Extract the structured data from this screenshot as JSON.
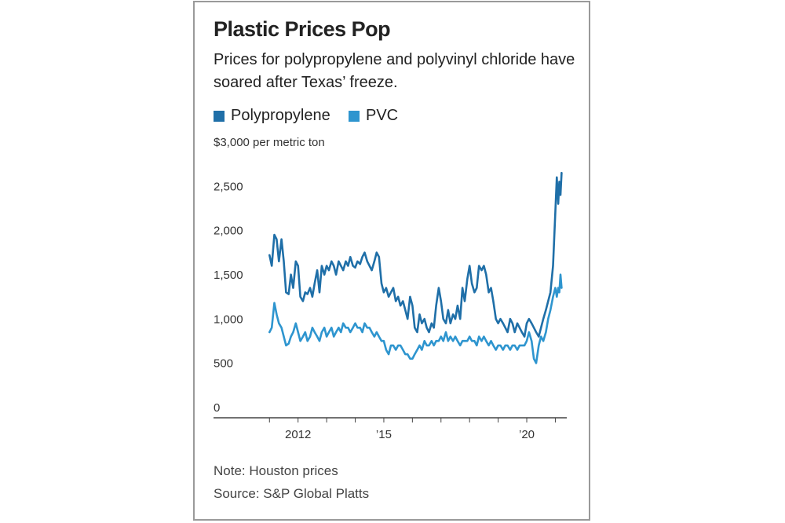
{
  "chart_data": {
    "type": "line",
    "title": "Plastic Prices Pop",
    "subtitle": "Prices for polypropylene and polyvinyl chloride have soared after Texas’ freeze.",
    "ylabel": "$3,000 per metric ton",
    "ylim": [
      0,
      3000
    ],
    "xlim": [
      2010.8,
      2021.4
    ],
    "grid": false,
    "legend_placement": "top-left",
    "y_ticks": [
      {
        "value": 3000,
        "label": "$3,000"
      },
      {
        "value": 2500,
        "label": "2,500"
      },
      {
        "value": 2000,
        "label": "2,000"
      },
      {
        "value": 1500,
        "label": "1,500"
      },
      {
        "value": 1000,
        "label": "1,000"
      },
      {
        "value": 500,
        "label": "500"
      },
      {
        "value": 0,
        "label": "0"
      }
    ],
    "x_ticks": [
      {
        "value": 2012,
        "label": "2012"
      },
      {
        "value": 2015,
        "label": "’15"
      },
      {
        "value": 2020,
        "label": "’20"
      }
    ],
    "series": [
      {
        "name": "Polypropylene",
        "color": "#1f6fa8",
        "x": [
          2011.0,
          2011.08,
          2011.17,
          2011.25,
          2011.33,
          2011.42,
          2011.5,
          2011.58,
          2011.67,
          2011.75,
          2011.83,
          2011.92,
          2012.0,
          2012.08,
          2012.17,
          2012.25,
          2012.33,
          2012.42,
          2012.5,
          2012.58,
          2012.67,
          2012.75,
          2012.83,
          2012.92,
          2013.0,
          2013.08,
          2013.17,
          2013.25,
          2013.33,
          2013.42,
          2013.5,
          2013.58,
          2013.67,
          2013.75,
          2013.83,
          2013.92,
          2014.0,
          2014.08,
          2014.17,
          2014.25,
          2014.33,
          2014.42,
          2014.5,
          2014.58,
          2014.67,
          2014.75,
          2014.83,
          2014.92,
          2015.0,
          2015.08,
          2015.17,
          2015.25,
          2015.33,
          2015.42,
          2015.5,
          2015.58,
          2015.67,
          2015.75,
          2015.83,
          2015.92,
          2016.0,
          2016.08,
          2016.17,
          2016.25,
          2016.33,
          2016.42,
          2016.5,
          2016.58,
          2016.67,
          2016.75,
          2016.83,
          2016.92,
          2017.0,
          2017.08,
          2017.17,
          2017.25,
          2017.33,
          2017.42,
          2017.5,
          2017.58,
          2017.67,
          2017.75,
          2017.83,
          2017.92,
          2018.0,
          2018.08,
          2018.17,
          2018.25,
          2018.33,
          2018.42,
          2018.5,
          2018.58,
          2018.67,
          2018.75,
          2018.83,
          2018.92,
          2019.0,
          2019.08,
          2019.17,
          2019.25,
          2019.33,
          2019.42,
          2019.5,
          2019.58,
          2019.67,
          2019.75,
          2019.83,
          2019.92,
          2020.0,
          2020.08,
          2020.17,
          2020.25,
          2020.33,
          2020.42,
          2020.5,
          2020.58,
          2020.67,
          2020.75,
          2020.83,
          2020.92,
          2021.0,
          2021.05,
          2021.1,
          2021.14,
          2021.18,
          2021.22
        ],
        "values": [
          1820,
          1700,
          2050,
          2000,
          1750,
          2000,
          1750,
          1400,
          1380,
          1600,
          1450,
          1750,
          1700,
          1350,
          1300,
          1400,
          1380,
          1450,
          1350,
          1500,
          1650,
          1400,
          1700,
          1600,
          1700,
          1650,
          1750,
          1700,
          1600,
          1750,
          1700,
          1650,
          1750,
          1700,
          1800,
          1700,
          1680,
          1750,
          1720,
          1800,
          1850,
          1750,
          1700,
          1650,
          1750,
          1850,
          1800,
          1500,
          1400,
          1450,
          1350,
          1400,
          1450,
          1300,
          1350,
          1250,
          1300,
          1200,
          1100,
          1350,
          1250,
          1000,
          950,
          1150,
          1050,
          1100,
          1000,
          950,
          1050,
          1000,
          1250,
          1450,
          1300,
          1100,
          1050,
          1200,
          1050,
          1150,
          1100,
          1250,
          1100,
          1450,
          1300,
          1550,
          1700,
          1500,
          1400,
          1450,
          1700,
          1650,
          1700,
          1600,
          1400,
          1450,
          1300,
          1100,
          1050,
          1100,
          1050,
          1000,
          950,
          1100,
          1050,
          950,
          1050,
          1000,
          950,
          900,
          1050,
          1100,
          1050,
          1000,
          950,
          900,
          1000,
          1100,
          1200,
          1300,
          1400,
          1700,
          2300,
          2700,
          2400,
          2650,
          2500,
          2750
        ]
      },
      {
        "name": "PVC",
        "color": "#2e95cf",
        "x": [
          2011.0,
          2011.08,
          2011.17,
          2011.25,
          2011.33,
          2011.42,
          2011.5,
          2011.58,
          2011.67,
          2011.75,
          2011.83,
          2011.92,
          2012.0,
          2012.08,
          2012.17,
          2012.25,
          2012.33,
          2012.42,
          2012.5,
          2012.58,
          2012.67,
          2012.75,
          2012.83,
          2012.92,
          2013.0,
          2013.08,
          2013.17,
          2013.25,
          2013.33,
          2013.42,
          2013.5,
          2013.58,
          2013.67,
          2013.75,
          2013.83,
          2013.92,
          2014.0,
          2014.08,
          2014.17,
          2014.25,
          2014.33,
          2014.42,
          2014.5,
          2014.58,
          2014.67,
          2014.75,
          2014.83,
          2014.92,
          2015.0,
          2015.08,
          2015.17,
          2015.25,
          2015.33,
          2015.42,
          2015.5,
          2015.58,
          2015.67,
          2015.75,
          2015.83,
          2015.92,
          2016.0,
          2016.08,
          2016.17,
          2016.25,
          2016.33,
          2016.42,
          2016.5,
          2016.58,
          2016.67,
          2016.75,
          2016.83,
          2016.92,
          2017.0,
          2017.08,
          2017.17,
          2017.25,
          2017.33,
          2017.42,
          2017.5,
          2017.58,
          2017.67,
          2017.75,
          2017.83,
          2017.92,
          2018.0,
          2018.08,
          2018.17,
          2018.25,
          2018.33,
          2018.42,
          2018.5,
          2018.58,
          2018.67,
          2018.75,
          2018.83,
          2018.92,
          2019.0,
          2019.08,
          2019.17,
          2019.25,
          2019.33,
          2019.42,
          2019.5,
          2019.58,
          2019.67,
          2019.75,
          2019.83,
          2019.92,
          2020.0,
          2020.08,
          2020.17,
          2020.25,
          2020.33,
          2020.42,
          2020.5,
          2020.58,
          2020.67,
          2020.75,
          2020.83,
          2020.92,
          2021.0,
          2021.05,
          2021.1,
          2021.14,
          2021.18,
          2021.22
        ],
        "values": [
          950,
          1000,
          1280,
          1150,
          1050,
          1000,
          900,
          800,
          820,
          900,
          950,
          1050,
          950,
          850,
          900,
          950,
          850,
          900,
          1000,
          950,
          900,
          850,
          950,
          1000,
          900,
          950,
          1000,
          900,
          950,
          1000,
          950,
          1050,
          1000,
          1000,
          950,
          1000,
          1050,
          1000,
          1000,
          950,
          1050,
          1000,
          1000,
          950,
          900,
          950,
          900,
          850,
          850,
          750,
          700,
          800,
          800,
          750,
          800,
          800,
          750,
          700,
          700,
          650,
          650,
          700,
          750,
          800,
          750,
          850,
          800,
          800,
          850,
          800,
          850,
          850,
          900,
          850,
          950,
          850,
          900,
          850,
          900,
          850,
          800,
          850,
          850,
          850,
          900,
          850,
          850,
          800,
          900,
          850,
          900,
          850,
          800,
          850,
          800,
          750,
          800,
          800,
          750,
          800,
          800,
          750,
          800,
          800,
          750,
          800,
          800,
          800,
          850,
          950,
          850,
          650,
          600,
          800,
          900,
          850,
          950,
          1100,
          1200,
          1350,
          1450,
          1350,
          1450,
          1400,
          1600,
          1450
        ]
      }
    ],
    "note": "Note: Houston prices",
    "source": "Source: S&P Global Platts"
  }
}
